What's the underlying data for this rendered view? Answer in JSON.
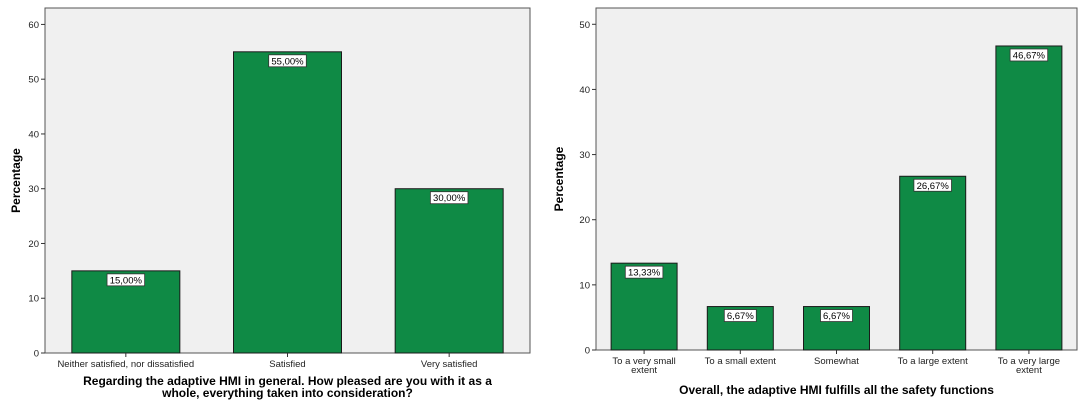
{
  "chart_data": [
    {
      "type": "bar",
      "categories": [
        "Neither satisfied, nor dissatisfied",
        "Satisfied",
        "Very satisfied"
      ],
      "values": [
        15.0,
        55.0,
        30.0
      ],
      "data_labels": [
        "15,00%",
        "55,00%",
        "30,00%"
      ],
      "xlabel": [
        "Regarding the adaptive HMI in general. How pleased are you with it  as a",
        "whole, everything taken into consideration?"
      ],
      "ylabel": "Percentage",
      "ylim": [
        0,
        63
      ],
      "yticks": [
        0,
        10,
        20,
        30,
        40,
        50,
        60
      ],
      "bar_color": "#0f8a45",
      "plot_background": "#f0f0f0",
      "grid": false
    },
    {
      "type": "bar",
      "categories": [
        [
          "To a very small",
          "extent"
        ],
        [
          "To a small extent"
        ],
        [
          "Somewhat"
        ],
        [
          "To a large extent"
        ],
        [
          "To a very large",
          "extent"
        ]
      ],
      "values": [
        13.33,
        6.67,
        6.67,
        26.67,
        46.67
      ],
      "data_labels": [
        "13,33%",
        "6,67%",
        "6,67%",
        "26,67%",
        "46,67%"
      ],
      "xlabel": [
        "Overall, the adaptive HMI fulfills all the safety functions"
      ],
      "ylabel": "Percentage",
      "ylim": [
        0,
        52.5
      ],
      "yticks": [
        0,
        10,
        20,
        30,
        40,
        50
      ],
      "bar_color": "#0f8a45",
      "plot_background": "#f0f0f0",
      "grid": false
    }
  ]
}
